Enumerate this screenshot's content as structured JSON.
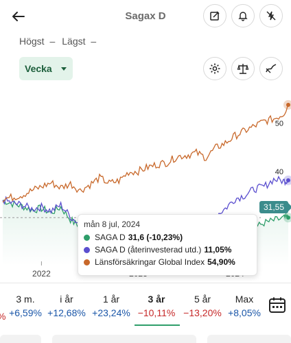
{
  "header": {
    "title": "Sagax D",
    "icons": [
      "back-arrow-icon",
      "edit-icon",
      "bell-icon",
      "notification-off-icon"
    ]
  },
  "highlow": {
    "high_label": "Högst",
    "high_value": "–",
    "low_label": "Lägst",
    "low_value": "–"
  },
  "period_select": {
    "value": "Vecka"
  },
  "chart_tools": [
    "settings-icon",
    "compare-scale-icon",
    "chart-line-icon"
  ],
  "chart_data": {
    "type": "line",
    "x_tick_labels": [
      "2022",
      "2023",
      "2024"
    ],
    "y_tick_labels": [
      "40",
      "50"
    ],
    "current_price_label": "31,55",
    "series": [
      {
        "name": "SAGA D",
        "color": "#2e9e6a",
        "x": [
          2021.6,
          2021.7,
          2021.8,
          2021.9,
          2022.0,
          2022.1,
          2022.2,
          2022.3,
          2022.4,
          2022.5,
          2022.6,
          2022.7,
          2022.8,
          2022.9,
          2023.0,
          2023.1,
          2023.2,
          2023.3,
          2023.4,
          2023.5,
          2023.6,
          2023.7,
          2023.8,
          2023.9,
          2024.0,
          2024.1,
          2024.2,
          2024.3,
          2024.4,
          2024.5,
          2024.55
        ],
        "y": [
          35.2,
          34.5,
          34.0,
          33.2,
          33.5,
          32.6,
          33.8,
          31.2,
          29.5,
          27.0,
          25.5,
          24.5,
          22.0,
          23.5,
          25.0,
          27.0,
          24.0,
          25.5,
          23.8,
          26.0,
          25.0,
          23.5,
          26.5,
          27.0,
          30.0,
          28.5,
          29.5,
          30.5,
          31.0,
          31.5,
          31.6
        ]
      },
      {
        "name": "SAGA D (återinvesterad utd.)",
        "color": "#5b4fcf",
        "x": [
          2021.6,
          2021.7,
          2021.8,
          2021.9,
          2022.0,
          2022.1,
          2022.2,
          2022.3,
          2022.4,
          2022.5,
          2022.6,
          2022.7,
          2022.8,
          2022.9,
          2023.0,
          2023.1,
          2023.2,
          2023.3,
          2023.4,
          2023.5,
          2023.6,
          2023.7,
          2023.8,
          2023.9,
          2024.0,
          2024.1,
          2024.2,
          2024.3,
          2024.4,
          2024.5,
          2024.55
        ],
        "y": [
          35.3,
          34.6,
          34.2,
          33.4,
          33.8,
          33.0,
          34.2,
          31.8,
          30.2,
          27.8,
          26.5,
          25.6,
          23.2,
          24.8,
          26.5,
          28.5,
          25.8,
          27.5,
          26.0,
          28.5,
          27.6,
          26.3,
          32.0,
          33.5,
          35.5,
          36.2,
          37.5,
          38.0,
          39.5,
          39.2,
          39.3
        ]
      },
      {
        "name": "Länsförsäkringar Global Index",
        "color": "#c8682a",
        "x": [
          2021.6,
          2021.7,
          2021.8,
          2021.9,
          2022.0,
          2022.1,
          2022.2,
          2022.3,
          2022.4,
          2022.5,
          2022.6,
          2022.7,
          2022.8,
          2022.9,
          2023.0,
          2023.1,
          2023.2,
          2023.3,
          2023.4,
          2023.5,
          2023.6,
          2023.7,
          2023.8,
          2023.9,
          2024.0,
          2024.1,
          2024.2,
          2024.3,
          2024.4,
          2024.5,
          2024.55
        ],
        "y": [
          35.5,
          35.8,
          36.3,
          37.2,
          38.0,
          38.8,
          37.8,
          38.6,
          37.2,
          38.4,
          39.8,
          38.7,
          39.2,
          41.0,
          41.2,
          42.0,
          42.6,
          43.0,
          44.2,
          44.5,
          45.0,
          44.0,
          46.0,
          47.0,
          48.5,
          49.5,
          50.5,
          51.5,
          52.0,
          53.0,
          54.9
        ]
      }
    ],
    "ylim": [
      22,
      57
    ],
    "xlim": [
      2021.6,
      2024.55
    ],
    "grid": false
  },
  "tooltip": {
    "date": "mån 8 jul, 2024",
    "rows": [
      {
        "label": "SAGA D",
        "value": "31,6 (-10,23%)",
        "color": "#2e9e6a"
      },
      {
        "label": "SAGA D (återinvesterad utd.)",
        "value": "11,05%",
        "color": "#5b4fcf"
      },
      {
        "label": "Länsförsäkringar Global Index",
        "value": "54,90%",
        "color": "#c8682a"
      }
    ]
  },
  "periods": [
    {
      "label": "3 m.",
      "value": "+6,59%",
      "sign": "pos"
    },
    {
      "label": "i år",
      "value": "+12,68%",
      "sign": "pos"
    },
    {
      "label": "1 år",
      "value": "+23,24%",
      "sign": "pos"
    },
    {
      "label": "3 år",
      "value": "−10,11%",
      "sign": "neg",
      "active": true
    },
    {
      "label": "5 år",
      "value": "−13,20%",
      "sign": "neg"
    },
    {
      "label": "Max",
      "value": "+8,05%",
      "sign": "pos"
    }
  ],
  "period_cut_left_sign": "neg"
}
